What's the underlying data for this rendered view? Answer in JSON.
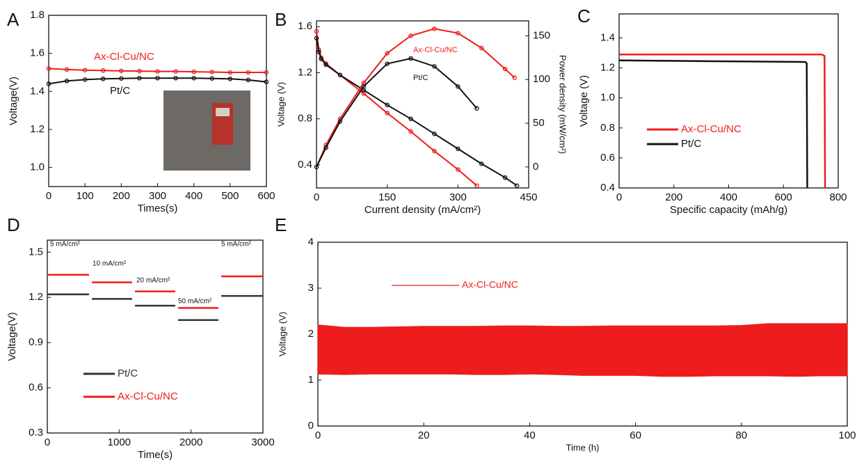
{
  "chart_data": [
    {
      "type": "line",
      "label": "A",
      "x_label": "Times(s)",
      "y_label": "Voltage(V)",
      "xlim": [
        0,
        600
      ],
      "ylim": [
        0.9,
        1.8
      ],
      "xticks": [
        0,
        100,
        200,
        300,
        400,
        500,
        600
      ],
      "yticks": [
        {
          "value": 1,
          "label": "1.0"
        },
        1.2,
        1.4,
        1.6,
        1.8
      ],
      "markers": true,
      "series": [
        {
          "name": "Ax-Cl-Cu/NC",
          "color": "#ee1c1c",
          "x": [
            0,
            50,
            100,
            150,
            200,
            250,
            300,
            350,
            400,
            450,
            500,
            550,
            600
          ],
          "values": [
            1.52,
            1.515,
            1.512,
            1.51,
            1.508,
            1.507,
            1.505,
            1.505,
            1.503,
            1.502,
            1.5,
            1.5,
            1.5
          ]
        },
        {
          "name": "Pt/C",
          "color": "#111111",
          "x": [
            0,
            50,
            100,
            150,
            200,
            250,
            300,
            350,
            400,
            450,
            500,
            550,
            600
          ],
          "values": [
            1.44,
            1.455,
            1.462,
            1.466,
            1.468,
            1.47,
            1.47,
            1.47,
            1.47,
            1.468,
            1.466,
            1.46,
            1.45
          ]
        }
      ]
    },
    {
      "type": "line",
      "label": "B",
      "x_label": "Current density (mA/cm²)",
      "y_label": "Voltage (V)",
      "y2_label": "Power density (mW/cm²)",
      "xlim": [
        0,
        450
      ],
      "ylim": [
        0.2,
        1.65
      ],
      "y2lim": [
        -24,
        167
      ],
      "xticks": [
        0,
        150,
        300,
        450
      ],
      "yticks": [
        0.4,
        0.8,
        1.2,
        1.6
      ],
      "y2ticks": [
        0,
        50,
        100,
        150
      ],
      "markers": true,
      "series": [
        {
          "name": "Ax-Cl-Cu/NC",
          "color": "#ee1c1c",
          "x": [
            0,
            5,
            10,
            20,
            50,
            100,
            150,
            200,
            250,
            300,
            340
          ],
          "values": [
            1.56,
            1.4,
            1.33,
            1.28,
            1.18,
            1.02,
            0.85,
            0.69,
            0.52,
            0.36,
            0.22
          ]
        },
        {
          "name": "Pt/C",
          "color": "#111111",
          "x": [
            0,
            5,
            10,
            20,
            50,
            100,
            150,
            200,
            250,
            300,
            350,
            400,
            425
          ],
          "values": [
            1.5,
            1.38,
            1.32,
            1.27,
            1.18,
            1.05,
            0.92,
            0.8,
            0.67,
            0.54,
            0.41,
            0.29,
            0.22
          ]
        },
        {
          "color": "#ee1c1c",
          "axis": "y2",
          "x": [
            0,
            20,
            50,
            100,
            150,
            200,
            250,
            300,
            350,
            400,
            420
          ],
          "values": [
            0,
            25,
            55,
            96,
            130,
            150,
            158,
            153,
            136,
            112,
            102
          ]
        },
        {
          "color": "#111111",
          "axis": "y2",
          "x": [
            0,
            20,
            50,
            100,
            150,
            200,
            250,
            300,
            340
          ],
          "values": [
            0,
            22,
            52,
            92,
            118,
            124,
            115,
            92,
            67
          ]
        }
      ]
    },
    {
      "type": "line",
      "label": "C",
      "x_label": "Specific capacity (mAh/g)",
      "y_label": "Voltage (V)",
      "xlim": [
        0,
        800
      ],
      "ylim": [
        0.4,
        1.56
      ],
      "xticks": [
        0,
        200,
        400,
        600,
        800
      ],
      "yticks": [
        0.4,
        0.6,
        0.8,
        {
          "value": 1,
          "label": "1.0"
        },
        1.2,
        1.4
      ],
      "markers": false,
      "series": [
        {
          "name": "Ax-Cl-Cu/NC",
          "color": "#ee1c1c",
          "x": [
            0,
            740,
            750,
            752
          ],
          "values": [
            1.29,
            1.29,
            1.28,
            0.4
          ]
        },
        {
          "name": "Pt/C",
          "color": "#111111",
          "x": [
            0,
            680,
            685,
            687
          ],
          "values": [
            1.25,
            1.24,
            1.23,
            0.4
          ]
        }
      ]
    },
    {
      "type": "line",
      "label": "D",
      "x_label": "Time(s)",
      "y_label": "Voltage(V)",
      "xlim": [
        0,
        3000
      ],
      "ylim": [
        0.3,
        1.58
      ],
      "xticks": [
        0,
        1000,
        2000,
        3000
      ],
      "yticks": [
        0.3,
        0.6,
        0.9,
        1.2,
        1.5
      ],
      "markers": false,
      "annotations": [
        "5 mA/cm²",
        "10 mA/cm²",
        "20 mA/cm²",
        "50 mA/cm²",
        "5 mA/cm²"
      ],
      "series": [
        {
          "name": "Pt/C",
          "color": "#333333",
          "x": [
            0,
            580,
            590,
            620,
            1180,
            1190,
            1220,
            1780,
            1790,
            1820,
            2380,
            2390,
            2420,
            3000
          ],
          "values": [
            1.22,
            1.22,
            null,
            1.19,
            1.19,
            null,
            1.145,
            1.145,
            null,
            1.05,
            1.05,
            null,
            1.21,
            1.21
          ]
        },
        {
          "name": "Ax-Cl-Cu/NC",
          "color": "#ee1c1c",
          "x": [
            0,
            580,
            590,
            620,
            1180,
            1190,
            1220,
            1780,
            1790,
            1820,
            2380,
            2390,
            2420,
            3000
          ],
          "values": [
            1.35,
            1.35,
            null,
            1.3,
            1.3,
            null,
            1.24,
            1.24,
            null,
            1.13,
            1.13,
            null,
            1.34,
            1.34
          ]
        }
      ]
    },
    {
      "type": "band",
      "label": "E",
      "x_label": "Time (h)",
      "y_label": "Voltage (V)",
      "xlim": [
        0,
        100
      ],
      "ylim": [
        0,
        4
      ],
      "xticks": [
        0,
        20,
        40,
        60,
        80,
        100
      ],
      "yticks": [
        0,
        1,
        2,
        3,
        4
      ],
      "series": [
        {
          "name": "Ax-Cl-Cu/NC",
          "color": "#ee1c1c",
          "x": [
            0,
            5,
            10,
            15,
            20,
            25,
            30,
            35,
            40,
            45,
            50,
            55,
            60,
            65,
            70,
            75,
            80,
            85,
            90,
            95,
            100
          ],
          "high": [
            2.2,
            2.15,
            2.15,
            2.16,
            2.17,
            2.17,
            2.17,
            2.18,
            2.18,
            2.17,
            2.17,
            2.18,
            2.18,
            2.18,
            2.18,
            2.18,
            2.19,
            2.23,
            2.23,
            2.23,
            2.23
          ],
          "low": [
            1.13,
            1.12,
            1.13,
            1.13,
            1.13,
            1.13,
            1.12,
            1.12,
            1.13,
            1.12,
            1.1,
            1.1,
            1.1,
            1.08,
            1.08,
            1.09,
            1.09,
            1.09,
            1.08,
            1.09,
            1.09
          ]
        }
      ]
    }
  ]
}
